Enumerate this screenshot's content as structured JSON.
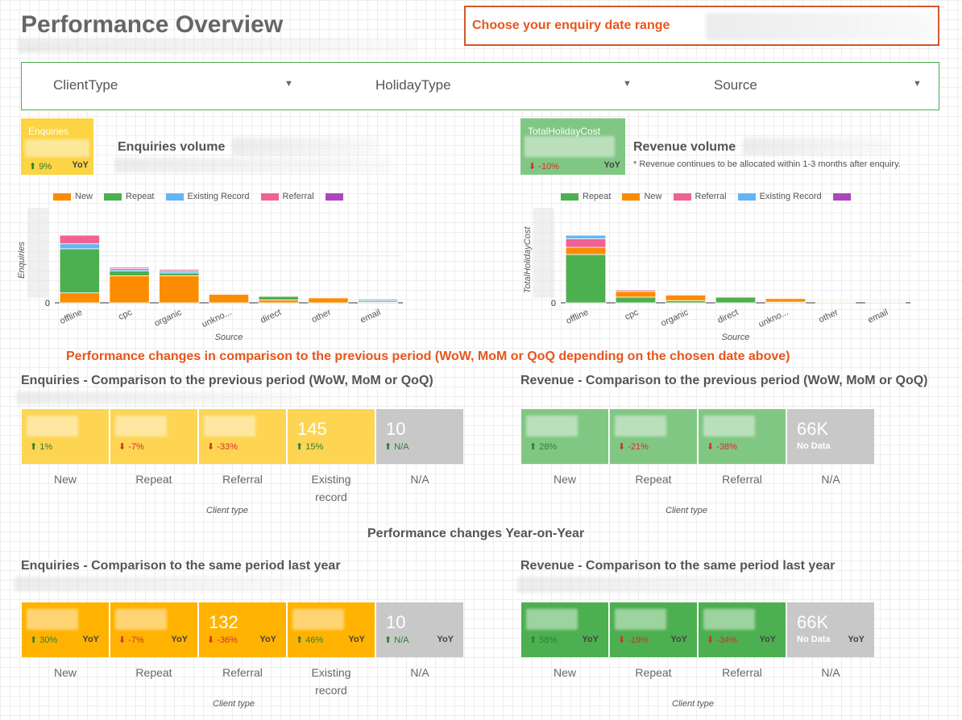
{
  "header": {
    "title": "Performance Overview",
    "date_range_label": "Choose your enquiry date range"
  },
  "filters": [
    {
      "label": "ClientType"
    },
    {
      "label": "HolidayType"
    },
    {
      "label": "Source"
    }
  ],
  "enquiries_card": {
    "title": "Enquiries",
    "delta": "9%",
    "delta_direction": "up",
    "period": "YoY",
    "color": "#fcd444"
  },
  "revenue_card": {
    "title": "TotalHolidayCost",
    "delta": "-10%",
    "delta_direction": "down",
    "period": "YoY",
    "color": "#81c784"
  },
  "enquiries_chart": {
    "heading": "Enquiries volume",
    "legend": [
      {
        "name": "New",
        "color": "#fb8c00"
      },
      {
        "name": "Repeat",
        "color": "#4caf50"
      },
      {
        "name": "Existing Record",
        "color": "#64b5f6"
      },
      {
        "name": "Referral",
        "color": "#f06292"
      },
      {
        "name": "",
        "color": "#ab47bc"
      }
    ],
    "ylabel": "Enquiries",
    "xlabel": "Source",
    "y_zero": "0"
  },
  "revenue_chart": {
    "heading": "Revenue volume",
    "note": "* Revenue continues to be allocated  within 1-3 months after enquiry.",
    "legend": [
      {
        "name": "Repeat",
        "color": "#4caf50"
      },
      {
        "name": "New",
        "color": "#fb8c00"
      },
      {
        "name": "Referral",
        "color": "#f06292"
      },
      {
        "name": "Existing Record",
        "color": "#64b5f6"
      },
      {
        "name": "",
        "color": "#ab47bc"
      }
    ],
    "ylabel": "TotalHolidayCost",
    "xlabel": "Source",
    "y_zero": "0"
  },
  "chart_data": [
    {
      "type": "bar",
      "stacked": true,
      "title": "Enquiries volume",
      "xlabel": "Source",
      "ylabel": "Enquiries",
      "categories": [
        "offline",
        "cpc",
        "organic",
        "unkno...",
        "direct",
        "other",
        "email"
      ],
      "series": [
        {
          "name": "New",
          "values": [
            14,
            38,
            38,
            12,
            4,
            7,
            1
          ]
        },
        {
          "name": "Repeat",
          "values": [
            62,
            7,
            4,
            1,
            5,
            1,
            2
          ]
        },
        {
          "name": "Existing Record",
          "values": [
            7,
            3,
            3,
            1,
            0,
            0,
            2
          ]
        },
        {
          "name": "Referral",
          "values": [
            12,
            2,
            2,
            1,
            1,
            1,
            1
          ]
        }
      ],
      "ylim": [
        0,
        120
      ]
    },
    {
      "type": "bar",
      "stacked": true,
      "title": "Revenue volume",
      "xlabel": "Source",
      "ylabel": "TotalHolidayCost",
      "categories": [
        "offline",
        "cpc",
        "organic",
        "direct",
        "unkno...",
        "other",
        "email"
      ],
      "series": [
        {
          "name": "Repeat",
          "values": [
            68,
            8,
            3,
            8,
            1,
            0,
            1
          ]
        },
        {
          "name": "New",
          "values": [
            10,
            8,
            8,
            1,
            5,
            1,
            0
          ]
        },
        {
          "name": "Referral",
          "values": [
            12,
            2,
            1,
            1,
            1,
            0,
            0
          ]
        },
        {
          "name": "Existing Record",
          "values": [
            5,
            1,
            0,
            0,
            0,
            0,
            0
          ]
        }
      ],
      "ylim": [
        0,
        120
      ]
    }
  ],
  "banner_prev": "Performance changes in comparison to the previous period (WoW, MoM or QoQ depending on the chosen date above)",
  "banner_yoy": "Performance changes Year-on-Year",
  "enq_prev": {
    "title": "Enquiries - Comparison to the previous period (WoW, MoM or QoQ)",
    "caption": "Client type",
    "tiles": [
      {
        "label": "New",
        "value": "",
        "delta": "1%",
        "dir": "up",
        "color": "#fdd553"
      },
      {
        "label": "Repeat",
        "value": "",
        "delta": "-7%",
        "dir": "down",
        "color": "#fdd553"
      },
      {
        "label": "Referral",
        "value": "",
        "delta": "-33%",
        "dir": "down",
        "color": "#fdd553"
      },
      {
        "label": "Existing record",
        "value": "145",
        "delta": "15%",
        "dir": "up",
        "color": "#fdd553"
      },
      {
        "label": "N/A",
        "value": "10",
        "delta": "N/A",
        "dir": "up",
        "color": "#c8c8c8"
      }
    ]
  },
  "rev_prev": {
    "title": "Revenue - Comparison to the previous period (WoW, MoM or QoQ)",
    "caption": "Client type",
    "tiles": [
      {
        "label": "New",
        "value": "",
        "delta": "28%",
        "dir": "up",
        "color": "#81c784"
      },
      {
        "label": "Repeat",
        "value": "",
        "delta": "-21%",
        "dir": "down",
        "color": "#81c784"
      },
      {
        "label": "Referral",
        "value": "",
        "delta": "-38%",
        "dir": "down",
        "color": "#81c784"
      },
      {
        "label": "N/A",
        "value": "66K",
        "nodata": "No Data",
        "color": "#c8c8c8"
      }
    ]
  },
  "enq_yoy": {
    "title": "Enquiries - Comparison to the same period last year",
    "caption": "Client type",
    "period": "YoY",
    "tiles": [
      {
        "label": "New",
        "value": "",
        "delta": "30%",
        "dir": "up",
        "color": "#ffb300"
      },
      {
        "label": "Repeat",
        "value": "",
        "delta": "-7%",
        "dir": "down",
        "color": "#ffb300"
      },
      {
        "label": "Referral",
        "value": "132",
        "delta": "-36%",
        "dir": "down",
        "color": "#ffb300"
      },
      {
        "label": "Existing record",
        "value": "",
        "delta": "46%",
        "dir": "up",
        "color": "#ffb300"
      },
      {
        "label": "N/A",
        "value": "10",
        "delta": "N/A",
        "dir": "up",
        "color": "#c8c8c8"
      }
    ]
  },
  "rev_yoy": {
    "title": "Revenue - Comparison to the same period last year",
    "caption": "Client type",
    "period": "YoY",
    "tiles": [
      {
        "label": "New",
        "value": "",
        "delta": "58%",
        "dir": "up",
        "color": "#4caf50"
      },
      {
        "label": "Repeat",
        "value": "",
        "delta": "-19%",
        "dir": "down",
        "color": "#4caf50"
      },
      {
        "label": "Referral",
        "value": "",
        "delta": "-34%",
        "dir": "down",
        "color": "#4caf50"
      },
      {
        "label": "N/A",
        "value": "66K",
        "nodata": "No Data",
        "color": "#c8c8c8"
      }
    ]
  }
}
